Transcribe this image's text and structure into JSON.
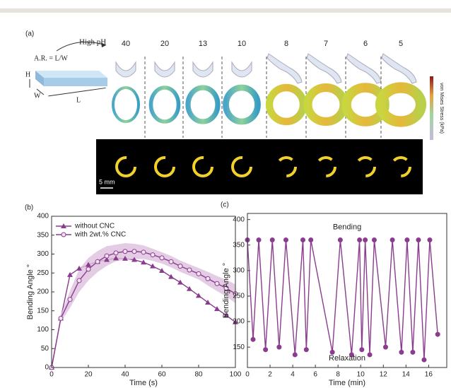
{
  "panel_a": {
    "label": "(a)",
    "arrow_label": "High pH",
    "ratio": "A.R. = L/W",
    "dims": [
      "H",
      "W",
      "L"
    ],
    "aspect_ratios": [
      "40",
      "20",
      "13",
      "10",
      "8",
      "7",
      "6",
      "5"
    ],
    "scale": "5 mm",
    "colorbar_label": "von Mises Stress (kPa)"
  },
  "chart_data": [
    {
      "type": "line",
      "panel": "(b)",
      "xlabel": "Time (s)",
      "ylabel": "Bending Angle °",
      "x": [
        0,
        5,
        10,
        15,
        20,
        25,
        30,
        35,
        40,
        45,
        50,
        55,
        60,
        65,
        70,
        75,
        80,
        85,
        90,
        95,
        100
      ],
      "series": [
        {
          "name": "without CNC",
          "color": "#8a3c8e",
          "marker": "triangle",
          "values": [
            0,
            130,
            245,
            262,
            272,
            280,
            285,
            289,
            288,
            285,
            278,
            268,
            256,
            240,
            225,
            208,
            190,
            172,
            155,
            138,
            120
          ]
        },
        {
          "name": "with 2wt.% CNC",
          "color": "#8a3c8e",
          "marker": "circle",
          "band_color": "#dcbfdd",
          "values": [
            0,
            130,
            180,
            230,
            260,
            280,
            295,
            303,
            307,
            307,
            305,
            298,
            290,
            280,
            268,
            258,
            248,
            235,
            222,
            210,
            195
          ],
          "error": [
            0,
            10,
            22,
            30,
            30,
            28,
            26,
            22,
            22,
            20,
            18,
            16,
            15,
            15,
            15,
            15,
            15,
            18,
            20,
            22,
            25
          ]
        }
      ],
      "xlim": [
        0,
        100
      ],
      "xticks": [
        0,
        20,
        40,
        60,
        80,
        100
      ],
      "ylim": [
        0,
        400
      ],
      "yticks": [
        0,
        50,
        100,
        150,
        200,
        250,
        300,
        350,
        400
      ],
      "legend": "upper left"
    },
    {
      "type": "line",
      "panel": "(c)",
      "xlabel": "Time (min)",
      "ylabel": "Bending Angle °",
      "x": [
        0,
        0.5,
        1,
        1.6,
        2.2,
        2.8,
        3.4,
        4.2,
        4.9,
        5.2,
        5.6,
        7.5,
        8.2,
        9.2,
        9.9,
        10.1,
        10.4,
        10.8,
        11.2,
        12.2,
        12.8,
        13.6,
        14.1,
        14.6,
        15.1,
        15.6,
        16.1,
        16.8
      ],
      "series": [
        {
          "name": null,
          "color": "#8a3c8e",
          "marker": "circle",
          "values": [
            360,
            165,
            360,
            145,
            360,
            150,
            360,
            135,
            360,
            145,
            360,
            140,
            360,
            135,
            360,
            145,
            360,
            135,
            360,
            150,
            360,
            140,
            360,
            140,
            360,
            125,
            360,
            175
          ]
        }
      ],
      "xlim": [
        0,
        17.6
      ],
      "xticks": [
        0,
        2,
        4,
        6,
        8,
        10,
        12,
        14,
        16
      ],
      "ylim": [
        110,
        412
      ],
      "yticks": [
        150,
        200,
        250,
        300,
        350,
        400
      ],
      "annotations": [
        {
          "text": "Bending",
          "x": 8.8,
          "y": 385
        },
        {
          "text": "Relaxation",
          "x": 8.8,
          "y": 128
        }
      ]
    }
  ]
}
